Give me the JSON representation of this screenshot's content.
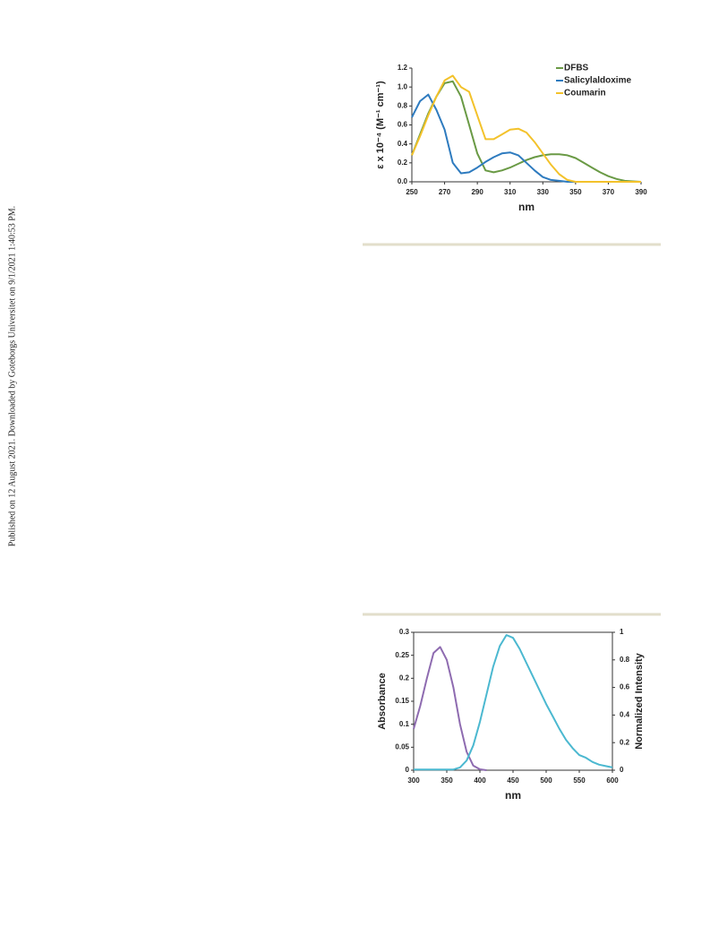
{
  "margin_note": "Published on 12 August 2021. Downloaded by Goteborgs Universitet on 9/1/2021 1:40:53 PM.",
  "chart_data": [
    {
      "type": "line",
      "xlabel": "nm",
      "ylabel": "ε x 10⁻⁴ (M⁻¹ cm⁻¹)",
      "x": [
        250,
        255,
        260,
        265,
        270,
        275,
        280,
        285,
        290,
        295,
        300,
        305,
        310,
        315,
        320,
        325,
        330,
        335,
        340,
        345,
        350,
        355,
        360,
        365,
        370,
        375,
        380,
        385,
        390
      ],
      "series": [
        {
          "name": "DFBS",
          "color": "#6a9a45",
          "values": [
            0.28,
            0.5,
            0.72,
            0.9,
            1.04,
            1.06,
            0.9,
            0.6,
            0.3,
            0.12,
            0.1,
            0.12,
            0.15,
            0.19,
            0.23,
            0.26,
            0.28,
            0.29,
            0.29,
            0.28,
            0.25,
            0.2,
            0.15,
            0.1,
            0.06,
            0.03,
            0.01,
            0.005,
            0
          ]
        },
        {
          "name": "Salicylaldoxime",
          "color": "#2e7bbf",
          "values": [
            0.68,
            0.85,
            0.92,
            0.76,
            0.55,
            0.2,
            0.09,
            0.1,
            0.15,
            0.21,
            0.26,
            0.3,
            0.31,
            0.28,
            0.2,
            0.12,
            0.05,
            0.02,
            0.01,
            0,
            0,
            0,
            0,
            0,
            0,
            0,
            0,
            0,
            0
          ]
        },
        {
          "name": "Coumarin",
          "color": "#f3c22b",
          "values": [
            0.28,
            0.48,
            0.7,
            0.9,
            1.07,
            1.12,
            1.0,
            0.95,
            0.7,
            0.45,
            0.45,
            0.5,
            0.55,
            0.56,
            0.52,
            0.42,
            0.3,
            0.18,
            0.08,
            0.02,
            0,
            0,
            0,
            0,
            0,
            0,
            0,
            0,
            0
          ]
        }
      ],
      "xlim": [
        250,
        390
      ],
      "xticks": [
        250,
        270,
        290,
        310,
        330,
        350,
        370,
        390
      ],
      "ylim": [
        0,
        1.2
      ],
      "yticks": [
        {
          "value": 0,
          "label": "0.0"
        },
        0.2,
        0.4,
        0.6,
        0.8,
        {
          "value": 1,
          "label": "1.0"
        },
        1.2
      ],
      "legend": "top-right"
    },
    {
      "type": "line",
      "xlabel": "nm",
      "ylabel": "Absorbance",
      "y2label": "Normalized Intensity",
      "x": [
        300,
        310,
        320,
        330,
        340,
        350,
        360,
        370,
        380,
        390,
        400,
        410,
        420,
        430,
        440,
        450,
        460,
        470,
        480,
        490,
        500,
        510,
        520,
        530,
        540,
        550,
        560,
        570,
        580,
        590,
        600
      ],
      "series": [
        {
          "color": "#8e6bb0",
          "values": [
            0.09,
            0.14,
            0.2,
            0.255,
            0.268,
            0.24,
            0.18,
            0.1,
            0.04,
            0.01,
            0.002,
            0,
            null,
            null,
            null,
            null,
            null,
            null,
            null,
            null,
            null,
            null,
            null,
            null,
            null,
            null,
            null,
            null,
            null,
            null,
            null
          ]
        },
        {
          "color": "#4bb8d0",
          "axis": "y2",
          "values": [
            0.005,
            0.005,
            0.005,
            0.005,
            0.005,
            0.005,
            0.005,
            0.02,
            0.07,
            0.18,
            0.35,
            0.55,
            0.75,
            0.9,
            0.98,
            0.96,
            0.88,
            0.78,
            0.68,
            0.58,
            0.48,
            0.39,
            0.3,
            0.22,
            0.16,
            0.11,
            0.09,
            0.06,
            0.04,
            0.03,
            0.02
          ]
        }
      ],
      "xlim": [
        300,
        600
      ],
      "xticks": [
        300,
        350,
        400,
        450,
        500,
        550,
        600
      ],
      "ylim": [
        0,
        0.3
      ],
      "yticks": [
        0,
        0.05,
        0.1,
        0.15,
        0.2,
        0.25,
        0.3
      ],
      "y2lim": [
        0,
        1
      ],
      "y2ticks": [
        0,
        0.2,
        0.4,
        0.6,
        0.8,
        1
      ]
    }
  ]
}
